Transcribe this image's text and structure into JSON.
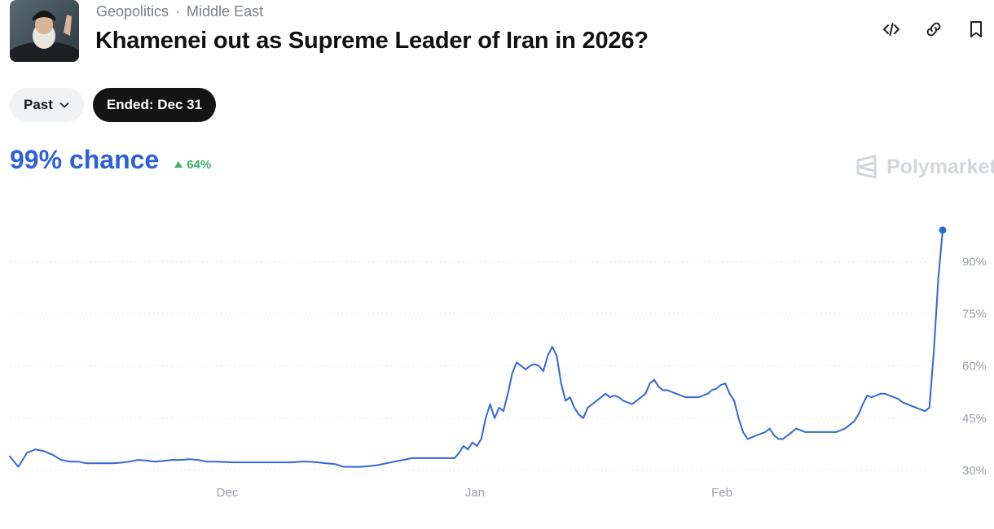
{
  "header": {
    "breadcrumb": [
      "Geopolitics",
      "Middle East"
    ],
    "breadcrumb_separator": "·",
    "title": "Khamenei out as Supreme Leader of Iran in 2026?"
  },
  "actions": [
    {
      "icon": "embed-code-icon"
    },
    {
      "icon": "link-icon"
    },
    {
      "icon": "bookmark-icon"
    }
  ],
  "filters": {
    "range_label": "Past",
    "ended_label": "Ended: Dec 31"
  },
  "summary": {
    "chance": "99% chance",
    "change": "64%",
    "change_direction": "up"
  },
  "brand": "Polymarket",
  "colors": {
    "line": "#3366d6",
    "chance": "#2f5fd7",
    "up": "#3bb26b",
    "grid": "#d9dce0"
  },
  "chart_data": {
    "type": "line",
    "title": "",
    "xlabel": "",
    "ylabel": "",
    "x_tick_labels": [
      "Dec",
      "Jan",
      "Feb"
    ],
    "y_tick_labels": [
      "30%",
      "45%",
      "60%",
      "75%",
      "90%"
    ],
    "y_ticks": [
      30,
      45,
      60,
      75,
      90
    ],
    "ylim": [
      26,
      102
    ],
    "grid": true,
    "series": [
      {
        "values": [
          34,
          31,
          35,
          36,
          35.5,
          34.5,
          33,
          32.5,
          32.5,
          32,
          32,
          32,
          32,
          32.2,
          32.5,
          33,
          32.8,
          32.5,
          32.7,
          33,
          33,
          33.2,
          33,
          32.5,
          32.5,
          32.4,
          32.3,
          32.3,
          32.3,
          32.3,
          32.3,
          32.3,
          32.3,
          32.3,
          32.5,
          32.5,
          32.3,
          32,
          31.8,
          31,
          31,
          31,
          31.2,
          31.5,
          32,
          32.5,
          33,
          33.5,
          33.5,
          33.5,
          33.5,
          33.5,
          33.5,
          35,
          37,
          36,
          38,
          37,
          39,
          45,
          49,
          45,
          48,
          47,
          52,
          58,
          61,
          60,
          59,
          60,
          60.5,
          60,
          58.5,
          63,
          65.5,
          63,
          55,
          50,
          51,
          48,
          46,
          45,
          48,
          49,
          50,
          51,
          52,
          51,
          51.5,
          51,
          50,
          49.5,
          49,
          50,
          51,
          52,
          55,
          56,
          54,
          53,
          53,
          52.5,
          52,
          51.5,
          51,
          51,
          51,
          51,
          51.5,
          52,
          53,
          53.5,
          54.5,
          55,
          52,
          50,
          45,
          41,
          39,
          39.5,
          40,
          40.5,
          41,
          42,
          40,
          39,
          39,
          40,
          41,
          42,
          41.5,
          41,
          41,
          41,
          41,
          41,
          41,
          41,
          41,
          41.5,
          42,
          43,
          44,
          46,
          49,
          51.5,
          51,
          51.5,
          52,
          52,
          51.5,
          51,
          50.5,
          49.5,
          49,
          48.5,
          48,
          47.5,
          47,
          48,
          64,
          85,
          99
        ]
      }
    ]
  }
}
